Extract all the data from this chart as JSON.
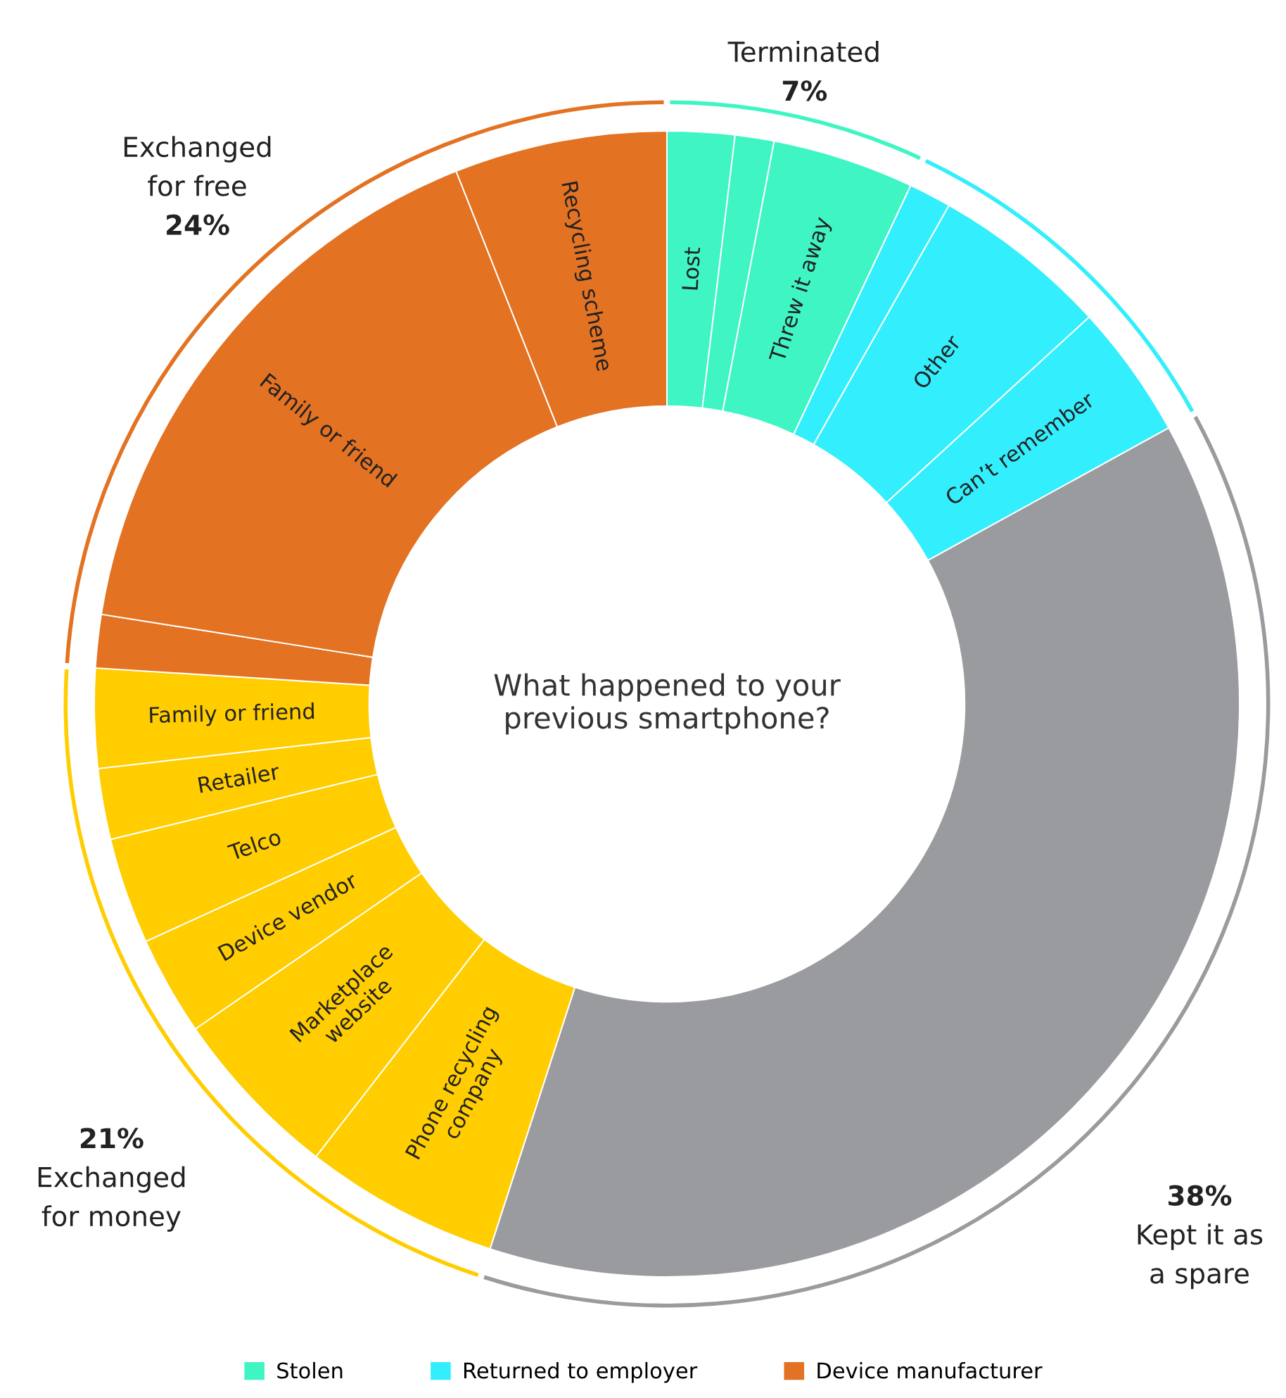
{
  "chart_data": {
    "type": "donut",
    "title": "What happened to your\nprevious smartphone?",
    "categories": [
      "Lost",
      "Stolen",
      "Threw it away",
      "Returned to employer",
      "Other",
      "Can’t remember",
      null,
      "Phone recycling\ncompany",
      "Marketplace\nwebsite",
      "Device vendor",
      "Telco",
      "Retailer",
      "Family or friend",
      "Device manufacturer",
      "Family or friend",
      "Recycling scheme"
    ],
    "values": [
      1.9,
      1.1,
      4.0,
      1.2,
      5.0,
      3.8,
      38,
      5.5,
      4.9,
      2.8,
      3.0,
      2.0,
      2.8,
      1.5,
      16.5,
      6.0
    ],
    "colors": [
      "#3ff5c4",
      "#3ff5c4",
      "#3ff5c4",
      "#33eefc",
      "#33eefc",
      "#33eefc",
      "#999b9e",
      "#ffcd00",
      "#ffcd00",
      "#ffcd00",
      "#ffcd00",
      "#ffcd00",
      "#ffcd00",
      "#e37222",
      "#e37222",
      "#e37222"
    ],
    "annotations": [
      "Terminated\n7%",
      "38%\nKept it as\na spare",
      "21%\nExchanged\nfor money",
      "Exchanged\nfor free\n24%"
    ],
    "legend": "bottom"
  }
}
